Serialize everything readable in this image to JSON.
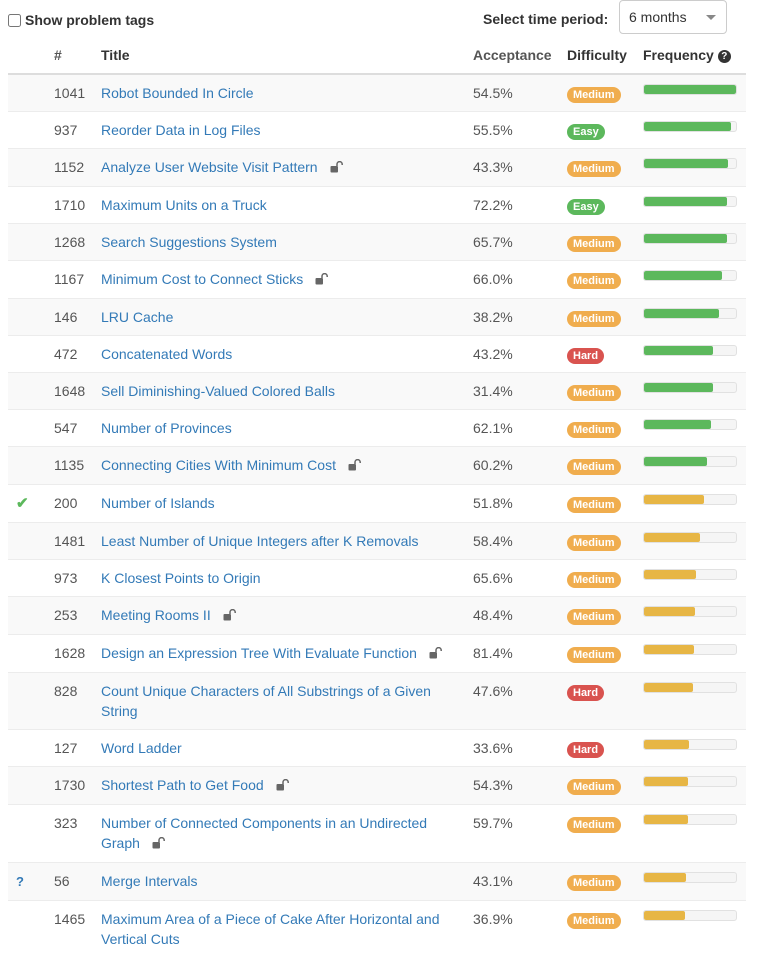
{
  "filters": {
    "show_tags_label": "Show problem tags",
    "period_label": "Select time period:",
    "period_value": "6 months"
  },
  "table": {
    "headers": {
      "num": "#",
      "title": "Title",
      "acceptance": "Acceptance",
      "difficulty": "Difficulty",
      "frequency": "Frequency"
    },
    "rows": [
      {
        "status": "",
        "num": "1041",
        "title": "Robot Bounded In Circle",
        "locked": false,
        "acceptance": "54.5%",
        "difficulty": "Medium",
        "frequency": 1.0,
        "bar_color": "#5cb85c"
      },
      {
        "status": "",
        "num": "937",
        "title": "Reorder Data in Log Files",
        "locked": false,
        "acceptance": "55.5%",
        "difficulty": "Easy",
        "frequency": 0.95,
        "bar_color": "#5cb85c"
      },
      {
        "status": "",
        "num": "1152",
        "title": "Analyze User Website Visit Pattern",
        "locked": true,
        "acceptance": "43.3%",
        "difficulty": "Medium",
        "frequency": 0.91,
        "bar_color": "#5cb85c"
      },
      {
        "status": "",
        "num": "1710",
        "title": "Maximum Units on a Truck",
        "locked": false,
        "acceptance": "72.2%",
        "difficulty": "Easy",
        "frequency": 0.9,
        "bar_color": "#5cb85c"
      },
      {
        "status": "",
        "num": "1268",
        "title": "Search Suggestions System",
        "locked": false,
        "acceptance": "65.7%",
        "difficulty": "Medium",
        "frequency": 0.9,
        "bar_color": "#5cb85c"
      },
      {
        "status": "",
        "num": "1167",
        "title": "Minimum Cost to Connect Sticks",
        "locked": true,
        "acceptance": "66.0%",
        "difficulty": "Medium",
        "frequency": 0.85,
        "bar_color": "#5cb85c"
      },
      {
        "status": "",
        "num": "146",
        "title": "LRU Cache",
        "locked": false,
        "acceptance": "38.2%",
        "difficulty": "Medium",
        "frequency": 0.81,
        "bar_color": "#5cb85c"
      },
      {
        "status": "",
        "num": "472",
        "title": "Concatenated Words",
        "locked": false,
        "acceptance": "43.2%",
        "difficulty": "Hard",
        "frequency": 0.75,
        "bar_color": "#5cb85c"
      },
      {
        "status": "",
        "num": "1648",
        "title": "Sell Diminishing-Valued Colored Balls",
        "locked": false,
        "acceptance": "31.4%",
        "difficulty": "Medium",
        "frequency": 0.75,
        "bar_color": "#5cb85c"
      },
      {
        "status": "",
        "num": "547",
        "title": "Number of Provinces",
        "locked": false,
        "acceptance": "62.1%",
        "difficulty": "Medium",
        "frequency": 0.73,
        "bar_color": "#5cb85c"
      },
      {
        "status": "",
        "num": "1135",
        "title": "Connecting Cities With Minimum Cost",
        "locked": true,
        "acceptance": "60.2%",
        "difficulty": "Medium",
        "frequency": 0.69,
        "bar_color": "#5cb85c"
      },
      {
        "status": "solved",
        "num": "200",
        "title": "Number of Islands",
        "locked": false,
        "acceptance": "51.8%",
        "difficulty": "Medium",
        "frequency": 0.65,
        "bar_color": "#e7b645"
      },
      {
        "status": "",
        "num": "1481",
        "title": "Least Number of Unique Integers after K Removals",
        "locked": false,
        "acceptance": "58.4%",
        "difficulty": "Medium",
        "frequency": 0.61,
        "bar_color": "#e7b645"
      },
      {
        "status": "",
        "num": "973",
        "title": "K Closest Points to Origin",
        "locked": false,
        "acceptance": "65.6%",
        "difficulty": "Medium",
        "frequency": 0.56,
        "bar_color": "#e7b645"
      },
      {
        "status": "",
        "num": "253",
        "title": "Meeting Rooms II",
        "locked": true,
        "acceptance": "48.4%",
        "difficulty": "Medium",
        "frequency": 0.55,
        "bar_color": "#e7b645"
      },
      {
        "status": "",
        "num": "1628",
        "title": "Design an Expression Tree With Evaluate Function",
        "locked": true,
        "acceptance": "81.4%",
        "difficulty": "Medium",
        "frequency": 0.54,
        "bar_color": "#e7b645"
      },
      {
        "status": "",
        "num": "828",
        "title": "Count Unique Characters of All Substrings of a Given String",
        "locked": false,
        "acceptance": "47.6%",
        "difficulty": "Hard",
        "frequency": 0.53,
        "bar_color": "#e7b645"
      },
      {
        "status": "",
        "num": "127",
        "title": "Word Ladder",
        "locked": false,
        "acceptance": "33.6%",
        "difficulty": "Hard",
        "frequency": 0.49,
        "bar_color": "#e7b645"
      },
      {
        "status": "",
        "num": "1730",
        "title": "Shortest Path to Get Food",
        "locked": true,
        "acceptance": "54.3%",
        "difficulty": "Medium",
        "frequency": 0.48,
        "bar_color": "#e7b645"
      },
      {
        "status": "",
        "num": "323",
        "title": "Number of Connected Components in an Undirected Graph",
        "locked": true,
        "acceptance": "59.7%",
        "difficulty": "Medium",
        "frequency": 0.48,
        "bar_color": "#e7b645"
      },
      {
        "status": "attempted",
        "num": "56",
        "title": "Merge Intervals",
        "locked": false,
        "acceptance": "43.1%",
        "difficulty": "Medium",
        "frequency": 0.46,
        "bar_color": "#e7b645"
      },
      {
        "status": "",
        "num": "1465",
        "title": "Maximum Area of a Piece of Cake After Horizontal and Vertical Cuts",
        "locked": false,
        "acceptance": "36.9%",
        "difficulty": "Medium",
        "frequency": 0.45,
        "bar_color": "#e7b645"
      }
    ]
  },
  "status_icons": {
    "solved": "✔",
    "attempted": "?"
  },
  "icons": {
    "lock": "lock-open-icon",
    "help": "?"
  }
}
